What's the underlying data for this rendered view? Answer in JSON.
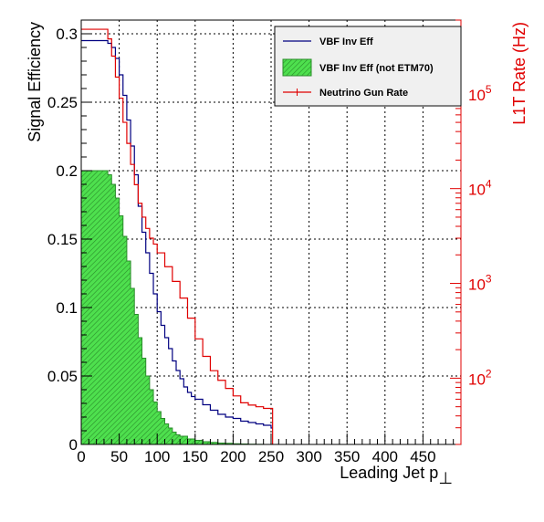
{
  "chart_data": {
    "type": "line",
    "title": "",
    "xlabel": "Leading Jet p",
    "xlabel_subscript": "⊥",
    "ylabel": "Signal Efficiency",
    "y2label": "L1T Rate (Hz)",
    "xlim": [
      0,
      500
    ],
    "ylim": [
      0,
      0.31
    ],
    "y2lim_log": [
      20,
      600000
    ],
    "grid": true,
    "legend_position": "top-right",
    "x_ticks": [
      0,
      50,
      100,
      150,
      200,
      250,
      300,
      350,
      400,
      450
    ],
    "y_ticks": [
      "0",
      "0.05",
      "0.1",
      "0.15",
      "0.2",
      "0.25",
      "0.3"
    ],
    "y2_ticks": [
      {
        "base": "10",
        "exp": "2",
        "value": 100
      },
      {
        "base": "10",
        "exp": "3",
        "value": 1000
      },
      {
        "base": "10",
        "exp": "4",
        "value": 10000
      },
      {
        "base": "10",
        "exp": "5",
        "value": 100000
      }
    ],
    "series": [
      {
        "name": "VBF Inv Eff",
        "axis": "left",
        "color": "#000080",
        "x": [
          0,
          35,
          40,
          45,
          50,
          55,
          60,
          65,
          70,
          75,
          80,
          85,
          90,
          95,
          100,
          105,
          110,
          115,
          120,
          125,
          130,
          135,
          140,
          145,
          150,
          160,
          170,
          180,
          190,
          200,
          210,
          220,
          230,
          240,
          250,
          252
        ],
        "y": [
          0.295,
          0.293,
          0.29,
          0.282,
          0.27,
          0.255,
          0.237,
          0.218,
          0.197,
          0.174,
          0.155,
          0.14,
          0.125,
          0.11,
          0.097,
          0.087,
          0.078,
          0.07,
          0.061,
          0.054,
          0.048,
          0.042,
          0.038,
          0.035,
          0.033,
          0.029,
          0.025,
          0.022,
          0.02,
          0.019,
          0.017,
          0.016,
          0.015,
          0.014,
          0.012,
          0.012
        ]
      },
      {
        "name": "VBF Inv Eff (not ETM70)",
        "axis": "left",
        "color": "#2a8c2a",
        "fill": "#4ee04e",
        "x": [
          0,
          30,
          35,
          40,
          45,
          50,
          55,
          60,
          65,
          70,
          75,
          80,
          85,
          90,
          95,
          100,
          105,
          110,
          115,
          120,
          125,
          130,
          140,
          150,
          160,
          170,
          180,
          190,
          200,
          210,
          220,
          230,
          240,
          250
        ],
        "y": [
          0.2,
          0.2,
          0.197,
          0.19,
          0.18,
          0.167,
          0.152,
          0.134,
          0.114,
          0.095,
          0.078,
          0.063,
          0.05,
          0.04,
          0.031,
          0.024,
          0.019,
          0.015,
          0.012,
          0.009,
          0.007,
          0.006,
          0.004,
          0.003,
          0.002,
          0.0015,
          0.001,
          0.0008,
          0.0005,
          0.0003,
          0.0002,
          0.0001,
          0.0,
          0.0
        ]
      },
      {
        "name": "Neutrino Gun Rate",
        "axis": "right",
        "color": "#e00000",
        "x": [
          0,
          35,
          40,
          45,
          50,
          55,
          60,
          65,
          70,
          75,
          80,
          85,
          90,
          95,
          100,
          110,
          120,
          130,
          140,
          150,
          160,
          170,
          180,
          190,
          200,
          210,
          220,
          230,
          240,
          250,
          252
        ],
        "y": [
          480000,
          380000,
          250000,
          150000,
          90000,
          50000,
          30000,
          18000,
          11000,
          7000,
          5000,
          3800,
          3000,
          2600,
          2100,
          1500,
          1050,
          700,
          430,
          260,
          170,
          120,
          95,
          78,
          65,
          55,
          52,
          50,
          48,
          48,
          48
        ]
      }
    ]
  }
}
